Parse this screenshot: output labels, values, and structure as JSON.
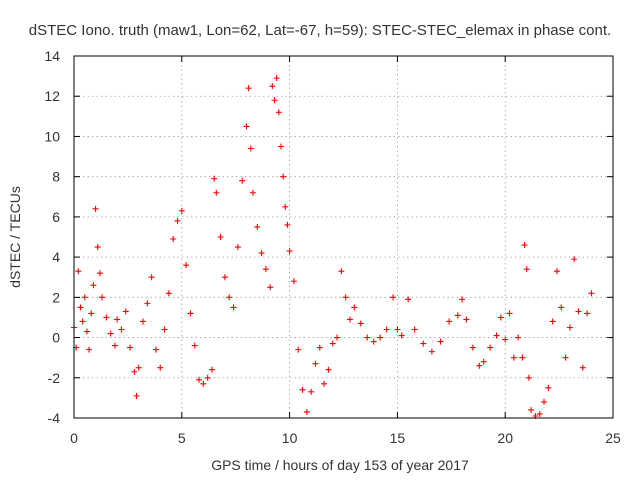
{
  "chart_data": {
    "type": "scatter",
    "title": "dSTEC Iono. truth (maw1, Lon=62, Lat=-67, h=59): STEC-STEC_elemax in phase cont.",
    "xlabel": "GPS time / hours of day 153 of year 2017",
    "ylabel": "dSTEC  / TECUs",
    "xlim": [
      0,
      25
    ],
    "ylim": [
      -4,
      14
    ],
    "x_ticks": [
      0,
      5,
      10,
      15,
      20,
      25
    ],
    "y_ticks": [
      -4,
      -2,
      0,
      2,
      4,
      6,
      8,
      10,
      12,
      14
    ],
    "x_tick_labels": [
      "0",
      "5",
      "10",
      "15",
      "20",
      "25"
    ],
    "y_tick_labels": [
      "-4",
      "-2",
      "0",
      "2",
      "4",
      "6",
      "8",
      "10",
      "12",
      "14"
    ],
    "grid": true,
    "marker": "+",
    "colors": {
      "series": "#ff0000",
      "grid": "#a0a0a0",
      "frame": "#000000"
    },
    "series": [
      {
        "points": [
          [
            0.0,
            0.5
          ],
          [
            0.1,
            -0.5
          ],
          [
            0.2,
            3.3
          ],
          [
            0.3,
            1.5
          ],
          [
            0.4,
            0.8
          ],
          [
            0.5,
            2.0
          ],
          [
            0.6,
            0.3
          ],
          [
            0.7,
            -0.6
          ],
          [
            0.8,
            1.2
          ],
          [
            0.9,
            2.6
          ],
          [
            1.0,
            6.4
          ],
          [
            1.1,
            4.5
          ],
          [
            1.2,
            3.2
          ],
          [
            1.3,
            2.0
          ],
          [
            1.5,
            1.0
          ],
          [
            1.7,
            0.2
          ],
          [
            1.9,
            -0.4
          ],
          [
            2.0,
            0.9
          ],
          [
            2.2,
            0.4
          ],
          [
            2.4,
            1.3
          ],
          [
            2.6,
            -0.5
          ],
          [
            2.8,
            -1.7
          ],
          [
            2.9,
            -2.9
          ],
          [
            3.0,
            -1.5
          ],
          [
            3.2,
            0.8
          ],
          [
            3.4,
            1.7
          ],
          [
            3.6,
            3.0
          ],
          [
            3.8,
            -0.6
          ],
          [
            4.0,
            -1.5
          ],
          [
            4.2,
            0.4
          ],
          [
            4.4,
            2.2
          ],
          [
            4.6,
            4.9
          ],
          [
            4.8,
            5.8
          ],
          [
            5.0,
            6.3
          ],
          [
            5.2,
            3.6
          ],
          [
            5.4,
            1.2
          ],
          [
            5.6,
            -0.4
          ],
          [
            5.8,
            -2.1
          ],
          [
            6.0,
            -2.3
          ],
          [
            6.2,
            -2.0
          ],
          [
            6.4,
            -1.6
          ],
          [
            6.5,
            7.9
          ],
          [
            6.6,
            7.2
          ],
          [
            6.8,
            5.0
          ],
          [
            7.0,
            3.0
          ],
          [
            7.2,
            2.0
          ],
          [
            7.4,
            1.5
          ],
          [
            7.6,
            4.5
          ],
          [
            7.8,
            7.8
          ],
          [
            8.0,
            10.5
          ],
          [
            8.1,
            12.4
          ],
          [
            8.2,
            9.4
          ],
          [
            8.3,
            7.2
          ],
          [
            8.5,
            5.5
          ],
          [
            8.7,
            4.2
          ],
          [
            8.9,
            3.4
          ],
          [
            9.1,
            2.5
          ],
          [
            9.2,
            12.5
          ],
          [
            9.3,
            11.8
          ],
          [
            9.4,
            12.9
          ],
          [
            9.5,
            11.2
          ],
          [
            9.6,
            9.5
          ],
          [
            9.7,
            8.0
          ],
          [
            9.8,
            6.5
          ],
          [
            9.9,
            5.6
          ],
          [
            10.0,
            4.3
          ],
          [
            10.2,
            2.8
          ],
          [
            10.4,
            -0.6
          ],
          [
            10.6,
            -2.6
          ],
          [
            10.8,
            -3.7
          ],
          [
            11.0,
            -2.7
          ],
          [
            11.2,
            -1.3
          ],
          [
            11.4,
            -0.5
          ],
          [
            11.6,
            -2.3
          ],
          [
            11.8,
            -1.6
          ],
          [
            12.0,
            -0.3
          ],
          [
            12.2,
            0.0
          ],
          [
            12.4,
            3.3
          ],
          [
            12.6,
            2.0
          ],
          [
            12.8,
            0.9
          ],
          [
            13.0,
            1.5
          ],
          [
            13.3,
            0.7
          ],
          [
            13.6,
            0.0
          ],
          [
            13.9,
            -0.2
          ],
          [
            14.2,
            0.0
          ],
          [
            14.5,
            0.4
          ],
          [
            14.8,
            2.0
          ],
          [
            15.0,
            0.4
          ],
          [
            15.2,
            0.1
          ],
          [
            15.5,
            1.9
          ],
          [
            15.8,
            0.4
          ],
          [
            16.2,
            -0.3
          ],
          [
            16.6,
            -0.7
          ],
          [
            17.0,
            -0.2
          ],
          [
            17.4,
            0.8
          ],
          [
            17.8,
            1.1
          ],
          [
            18.0,
            1.9
          ],
          [
            18.2,
            0.9
          ],
          [
            18.5,
            -0.5
          ],
          [
            18.8,
            -1.4
          ],
          [
            19.0,
            -1.2
          ],
          [
            19.3,
            -0.5
          ],
          [
            19.6,
            0.1
          ],
          [
            19.8,
            1.0
          ],
          [
            20.0,
            -0.1
          ],
          [
            20.2,
            1.2
          ],
          [
            20.4,
            -1.0
          ],
          [
            20.6,
            0.0
          ],
          [
            20.8,
            -1.0
          ],
          [
            20.9,
            4.6
          ],
          [
            21.0,
            3.4
          ],
          [
            21.1,
            -2.0
          ],
          [
            21.2,
            -3.6
          ],
          [
            21.4,
            -3.9
          ],
          [
            21.6,
            -3.8
          ],
          [
            21.8,
            -3.2
          ],
          [
            22.0,
            -2.5
          ],
          [
            22.2,
            0.8
          ],
          [
            22.4,
            3.3
          ],
          [
            22.6,
            1.5
          ],
          [
            22.8,
            -1.0
          ],
          [
            23.0,
            0.5
          ],
          [
            23.2,
            3.9
          ],
          [
            23.4,
            1.3
          ],
          [
            23.6,
            -1.5
          ],
          [
            23.8,
            1.2
          ],
          [
            24.0,
            2.2
          ]
        ]
      }
    ]
  }
}
